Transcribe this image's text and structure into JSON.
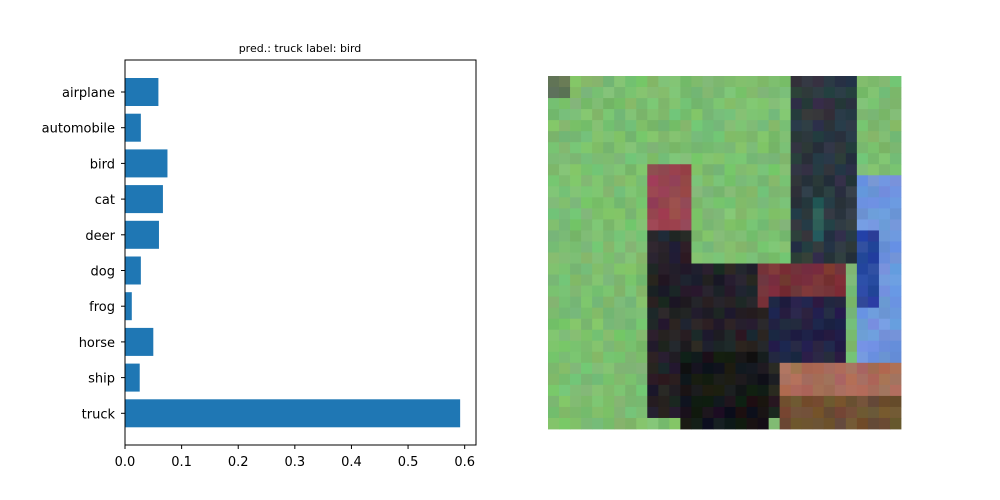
{
  "chart_data": {
    "type": "bar",
    "orientation": "horizontal",
    "title": "pred.: truck   label: bird",
    "categories": [
      "airplane",
      "automobile",
      "bird",
      "cat",
      "deer",
      "dog",
      "frog",
      "horse",
      "ship",
      "truck"
    ],
    "values": [
      0.059,
      0.028,
      0.075,
      0.067,
      0.06,
      0.028,
      0.012,
      0.05,
      0.026,
      0.592
    ],
    "xlim": [
      0,
      0.62
    ],
    "xticks": [
      "0.0",
      "0.1",
      "0.2",
      "0.3",
      "0.4",
      "0.5",
      "0.6"
    ],
    "xlabel": "",
    "ylabel": "",
    "bar_color": "#1f77b4",
    "grid": false
  },
  "image_panel": {
    "description_icon": "bird-photo",
    "grid_size": 32
  }
}
